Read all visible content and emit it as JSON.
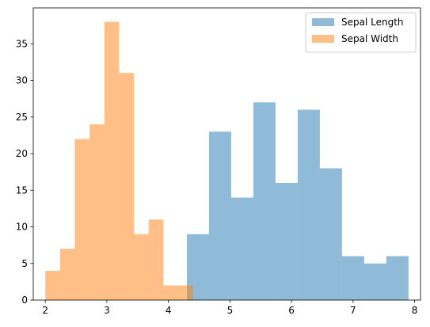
{
  "chart_data": {
    "type": "bar",
    "title": "",
    "xlabel": "",
    "ylabel": "",
    "xlim": [
      1.805,
      8.095
    ],
    "ylim": [
      0,
      39.9
    ],
    "xticks": [
      2,
      3,
      4,
      5,
      6,
      7,
      8
    ],
    "yticks": [
      0,
      5,
      10,
      15,
      20,
      25,
      30,
      35
    ],
    "grid": false,
    "legend_position": "top-right",
    "series": [
      {
        "name": "Sepal Length",
        "color": "#1f77b4",
        "opacity": 0.5,
        "bin_edges": [
          4.3,
          4.66,
          5.02,
          5.38,
          5.74,
          6.1,
          6.46,
          6.82,
          7.18,
          7.54,
          7.9
        ],
        "values": [
          9,
          23,
          14,
          27,
          16,
          26,
          18,
          6,
          5,
          6
        ]
      },
      {
        "name": "Sepal Width",
        "color": "#ff7f0e",
        "opacity": 0.5,
        "bin_edges": [
          2.0,
          2.24,
          2.48,
          2.72,
          2.96,
          3.2,
          3.44,
          3.68,
          3.92,
          4.16,
          4.4
        ],
        "values": [
          4,
          7,
          22,
          24,
          38,
          31,
          9,
          11,
          2,
          2
        ]
      }
    ]
  }
}
